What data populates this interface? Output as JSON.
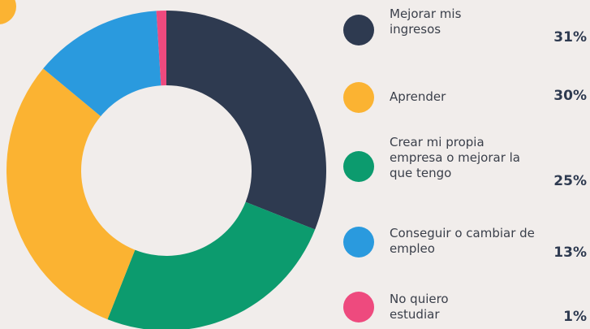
{
  "chart_data": {
    "type": "donut",
    "categories": [
      "Mejorar mis ingresos",
      "Aprender",
      "Crear mi propia empresa o mejorar la que tengo",
      "Conseguir o cambiar de empleo",
      "No quiero estudiar"
    ],
    "values": [
      31,
      30,
      25,
      13,
      1
    ],
    "value_labels": [
      "31%",
      "30%",
      "25%",
      "13%",
      "1%"
    ],
    "colors": [
      "#2e3a50",
      "#fbb332",
      "#0c9b6e",
      "#2a9ade",
      "#ee4a7e"
    ]
  }
}
